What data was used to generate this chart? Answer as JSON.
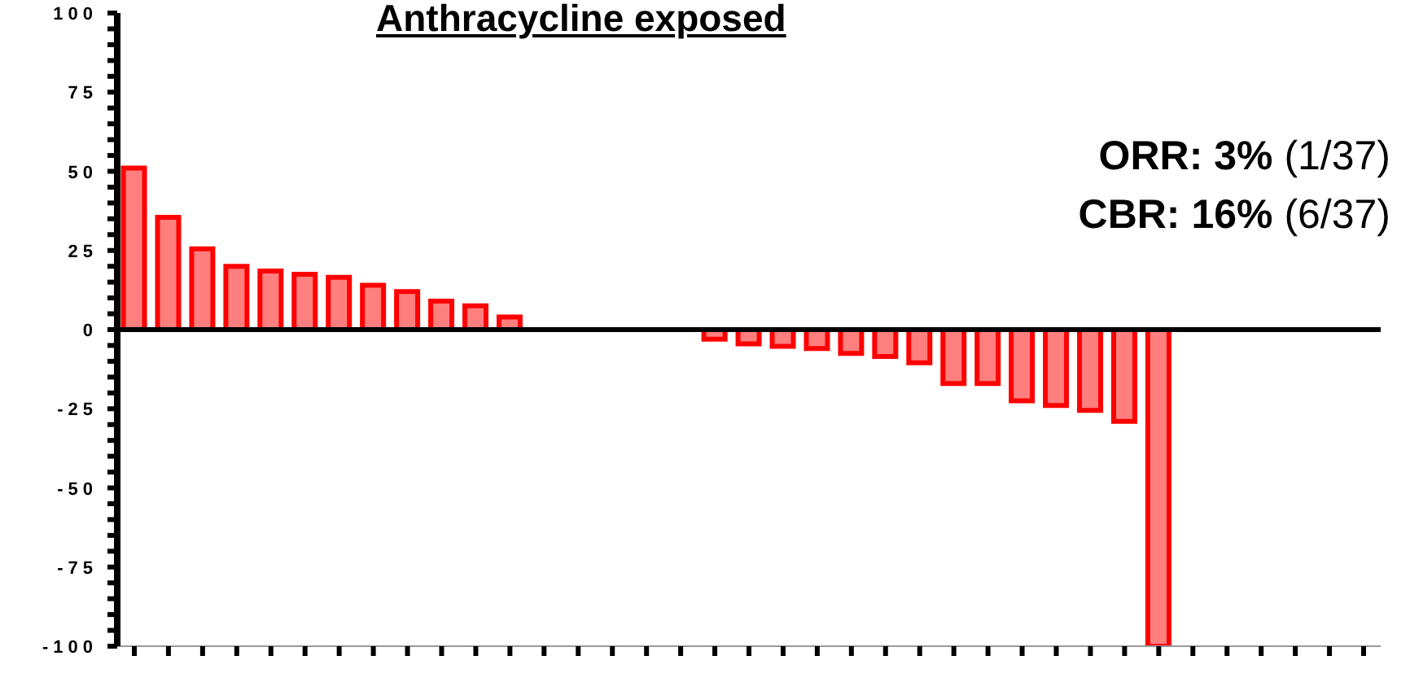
{
  "chart_data": {
    "type": "bar",
    "title": "Anthracycline exposed",
    "categories": [
      null,
      null,
      null,
      null,
      null,
      null,
      null,
      null,
      null,
      null,
      null,
      null,
      null,
      null,
      null,
      null,
      null,
      null,
      null,
      null,
      null,
      null,
      null,
      null,
      null,
      null,
      null,
      null,
      null,
      null,
      null,
      null,
      null,
      null,
      null,
      null,
      null
    ],
    "values": [
      51,
      35.5,
      25.5,
      20,
      18.5,
      17.5,
      16.5,
      14,
      12,
      9,
      7.5,
      4,
      0,
      0,
      0,
      0,
      0,
      -3,
      -4.5,
      -5.3,
      -6,
      -7.5,
      -8.5,
      -10.5,
      -17,
      -17,
      -22.5,
      -24,
      -25.5,
      -29,
      -100,
      0,
      0,
      0,
      0,
      0,
      0
    ],
    "color": "#ff0000",
    "ylim": [
      -100,
      100
    ],
    "yticks": [
      -100,
      {
        "value": -95,
        "label": null
      },
      {
        "value": -90,
        "label": null
      },
      {
        "value": -85,
        "label": null
      },
      {
        "value": -80,
        "label": null
      },
      -75,
      {
        "value": -70,
        "label": null
      },
      {
        "value": -65,
        "label": null
      },
      {
        "value": -60,
        "label": null
      },
      {
        "value": -55,
        "label": null
      },
      -50,
      {
        "value": -45,
        "label": null
      },
      {
        "value": -40,
        "label": null
      },
      {
        "value": -35,
        "label": null
      },
      {
        "value": -30,
        "label": null
      },
      -25,
      {
        "value": -20,
        "label": null
      },
      {
        "value": -15,
        "label": null
      },
      {
        "value": -10,
        "label": null
      },
      {
        "value": -5,
        "label": null
      },
      0,
      {
        "value": 5,
        "label": null
      },
      {
        "value": 10,
        "label": null
      },
      {
        "value": 15,
        "label": null
      },
      {
        "value": 20,
        "label": null
      },
      25,
      {
        "value": 30,
        "label": null
      },
      {
        "value": 35,
        "label": null
      },
      {
        "value": 40,
        "label": null
      },
      {
        "value": 45,
        "label": null
      },
      50,
      {
        "value": 55,
        "label": null
      },
      {
        "value": 60,
        "label": null
      },
      {
        "value": 65,
        "label": null
      },
      {
        "value": 70,
        "label": null
      },
      75,
      {
        "value": 80,
        "label": null
      },
      {
        "value": 85,
        "label": null
      },
      {
        "value": 90,
        "label": null
      },
      {
        "value": 95,
        "label": null
      },
      100
    ],
    "ref_lines": [
      {
        "axis": "y",
        "value": 0,
        "color": "#000000"
      }
    ],
    "annotations": [
      "ORR: 3% (1/37)",
      "CBR: 16% (6/37)"
    ],
    "tick_labels": "y"
  }
}
